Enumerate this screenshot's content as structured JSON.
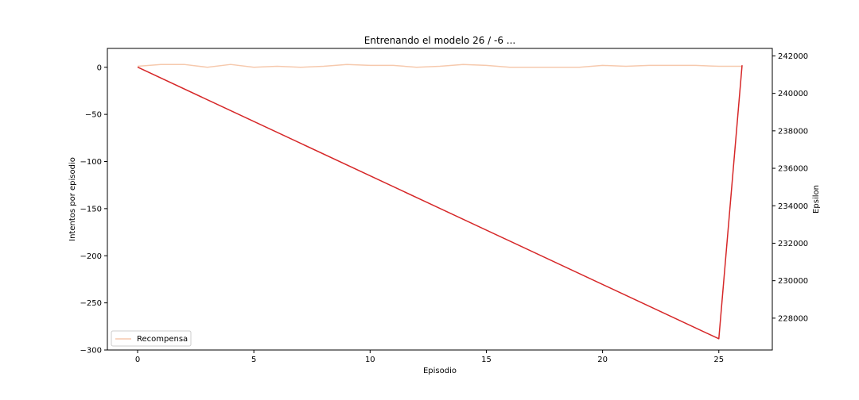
{
  "chart_data": {
    "type": "line",
    "title": "Entrenando el modelo 26 / -6 ...",
    "xlabel": "Episodio",
    "ylabel_left": "Intentos por episodio",
    "ylabel_right": "Epsilon",
    "xlim": [
      -1.3,
      27.3
    ],
    "ylim_left": [
      -300,
      20
    ],
    "ylim_right": [
      226300,
      242400
    ],
    "x_ticks": [
      0,
      5,
      10,
      15,
      20,
      25
    ],
    "x_tick_labels": [
      "0",
      "5",
      "10",
      "15",
      "20",
      "25"
    ],
    "y_left_ticks": [
      0,
      -50,
      -100,
      -150,
      -200,
      -250,
      -300
    ],
    "y_left_tick_labels": [
      "0",
      "−50",
      "−100",
      "−150",
      "−200",
      "−250",
      "−300"
    ],
    "y_right_ticks": [
      228000,
      230000,
      232000,
      234000,
      236000,
      238000,
      240000,
      242000
    ],
    "y_right_tick_labels": [
      "228000",
      "230000",
      "232000",
      "234000",
      "236000",
      "238000",
      "240000",
      "242000"
    ],
    "grid": false,
    "legend_position": "lower-left",
    "series": [
      {
        "name": "Recompensa",
        "axis": "left",
        "color": "#f6c9ad",
        "x": [
          0,
          1,
          2,
          3,
          4,
          5,
          6,
          7,
          8,
          9,
          10,
          11,
          12,
          13,
          14,
          15,
          16,
          17,
          18,
          19,
          20,
          21,
          22,
          23,
          24,
          25,
          26
        ],
        "y": [
          1,
          3,
          3,
          0,
          3,
          0,
          1,
          0,
          1,
          3,
          2,
          2,
          0,
          1,
          3,
          2,
          0,
          0,
          0,
          0,
          2,
          1,
          2,
          2,
          2,
          1,
          1
        ]
      },
      {
        "axis": "right",
        "color": "#d62728",
        "x": [
          0,
          25,
          26
        ],
        "y": [
          241400,
          226900,
          241500
        ]
      }
    ]
  }
}
